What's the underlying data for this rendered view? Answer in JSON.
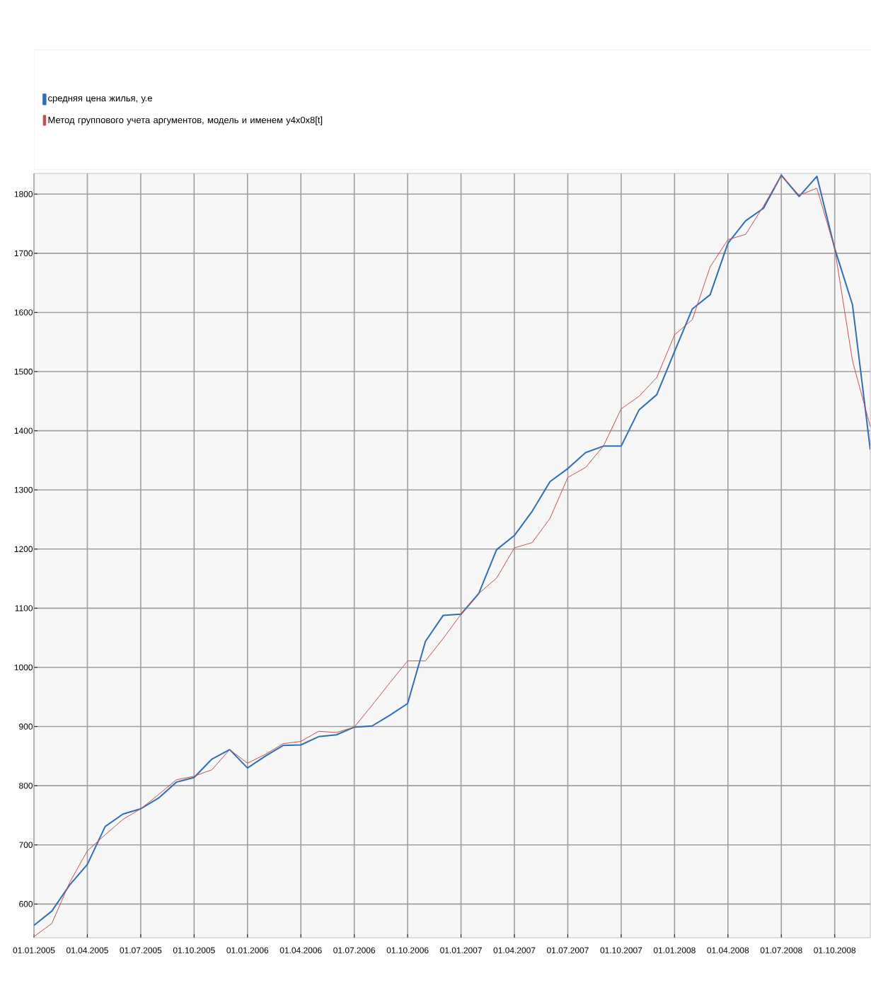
{
  "chart_data": {
    "type": "line",
    "x": [
      "2005-01",
      "2005-02",
      "2005-03",
      "2005-04",
      "2005-05",
      "2005-06",
      "2005-07",
      "2005-08",
      "2005-09",
      "2005-10",
      "2005-11",
      "2005-12",
      "2006-01",
      "2006-02",
      "2006-03",
      "2006-04",
      "2006-05",
      "2006-06",
      "2006-07",
      "2006-08",
      "2006-09",
      "2006-10",
      "2006-11",
      "2006-12",
      "2007-01",
      "2007-02",
      "2007-03",
      "2007-04",
      "2007-05",
      "2007-06",
      "2007-07",
      "2007-08",
      "2007-09",
      "2007-10",
      "2007-11",
      "2007-12",
      "2008-01",
      "2008-02",
      "2008-03",
      "2008-04",
      "2008-05",
      "2008-06",
      "2008-07",
      "2008-08",
      "2008-09",
      "2008-10",
      "2008-11",
      "2008-12"
    ],
    "series": [
      {
        "name": "средняя цена жилья, у.е",
        "color": "#2f6db5",
        "values": [
          564,
          588,
          632,
          667,
          731,
          752,
          761,
          779,
          806,
          814,
          845,
          861,
          830,
          850,
          868,
          869,
          883,
          886,
          899,
          901,
          919,
          939,
          1044,
          1088,
          1090,
          1125,
          1199,
          1223,
          1264,
          1314,
          1336,
          1363,
          1374,
          1374,
          1435,
          1461,
          1534,
          1606,
          1630,
          1717,
          1755,
          1776,
          1832,
          1796,
          1830,
          1708,
          1613,
          1368
        ]
      },
      {
        "name": "Метод группового учета аргументов, модель и именем y4x0x8[t]",
        "color": "#c0504d",
        "values": [
          545,
          567,
          636,
          690,
          717,
          743,
          761,
          785,
          810,
          816,
          827,
          861,
          838,
          853,
          871,
          875,
          892,
          890,
          899,
          936,
          974,
          1011,
          1011,
          1049,
          1090,
          1125,
          1151,
          1202,
          1211,
          1252,
          1321,
          1338,
          1374,
          1437,
          1458,
          1490,
          1562,
          1588,
          1677,
          1723,
          1732,
          1780,
          1832,
          1798,
          1810,
          1708,
          1518,
          1407
        ]
      }
    ],
    "xlim": [
      "2005-01",
      "2008-12"
    ],
    "xticks": [
      {
        "value": "2005-01",
        "label": "01.01.2005"
      },
      {
        "value": "2005-04",
        "label": "01.04.2005"
      },
      {
        "value": "2005-07",
        "label": "01.07.2005"
      },
      {
        "value": "2005-10",
        "label": "01.10.2005"
      },
      {
        "value": "2006-01",
        "label": "01.01.2006"
      },
      {
        "value": "2006-04",
        "label": "01.04.2006"
      },
      {
        "value": "2006-07",
        "label": "01.07.2006"
      },
      {
        "value": "2006-10",
        "label": "01.10.2006"
      },
      {
        "value": "2007-01",
        "label": "01.01.2007"
      },
      {
        "value": "2007-04",
        "label": "01.04.2007"
      },
      {
        "value": "2007-07",
        "label": "01.07.2007"
      },
      {
        "value": "2007-10",
        "label": "01.10.2007"
      },
      {
        "value": "2008-01",
        "label": "01.01.2008"
      },
      {
        "value": "2008-04",
        "label": "01.04.2008"
      },
      {
        "value": "2008-07",
        "label": "01.07.2008"
      },
      {
        "value": "2008-10",
        "label": "01.10.2008"
      }
    ],
    "ylim": [
      543,
      1835
    ],
    "yticks": [
      600,
      700,
      800,
      900,
      1000,
      1100,
      1200,
      1300,
      1400,
      1500,
      1600,
      1700,
      1800
    ],
    "grid": true,
    "legend": "top left",
    "marker": "none",
    "line_style": "solid"
  }
}
